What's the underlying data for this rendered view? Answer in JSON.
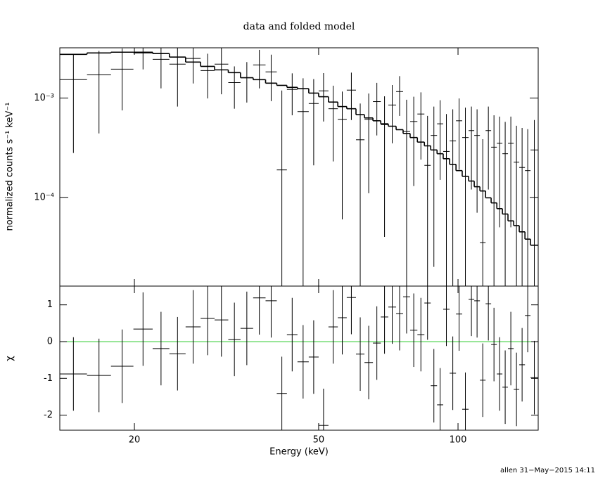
{
  "chart_data": [
    {
      "type": "spectrum",
      "title": "data and folded model",
      "ylabel": "normalized counts s⁻¹ keV⁻¹",
      "log_x": true,
      "log_y": true,
      "xlim": [
        13.8,
        149
      ],
      "ylim": [
        1.28e-05,
        0.0032
      ],
      "yticks": [
        {
          "value": 0.001,
          "label": "10⁻³"
        },
        {
          "value": 0.0001,
          "label": "10⁻⁴"
        }
      ],
      "bins": [
        13.8,
        15.8,
        17.8,
        19.9,
        21.9,
        23.8,
        25.8,
        27.8,
        29.8,
        31.9,
        33.9,
        36.1,
        38.4,
        40.6,
        42.7,
        45.0,
        47.6,
        50.0,
        52.5,
        55.0,
        57.5,
        60.2,
        62.8,
        65.5,
        68.1,
        70.7,
        73.5,
        76.1,
        78.8,
        81.7,
        84.6,
        87.3,
        90.1,
        92.9,
        95.9,
        99.0,
        102.1,
        105.4,
        108.4,
        111.5,
        114.7,
        117.9,
        121.3,
        124.7,
        128.2,
        131.9,
        135.6,
        139.5,
        143.4,
        149.0
      ],
      "data": {
        "color": "#000000",
        "values": [
          0.00153,
          0.00171,
          0.00195,
          0.00284,
          0.00245,
          0.00219,
          0.0025,
          0.00189,
          0.00219,
          0.00143,
          0.0016,
          0.00215,
          0.00183,
          0.000189,
          0.00122,
          0.00073,
          0.00088,
          0.00118,
          0.00078,
          0.00061,
          0.0012,
          0.00038,
          0.00061,
          0.00092,
          0.00054,
          0.00085,
          0.00116,
          0.00046,
          0.00058,
          0.00069,
          0.00021,
          0.00042,
          0.00055,
          0.00029,
          0.00037,
          0.00059,
          0.0004,
          0.00047,
          0.00042,
          3.5e-05,
          0.00047,
          0.00032,
          0.00035,
          0.000275,
          0.00035,
          0.000226,
          0.0002,
          0.000186,
          0.0003
        ],
        "errors": [
          0.00125,
          0.00127,
          0.0012,
          0.0009,
          0.0012,
          0.00137,
          0.0011,
          0.0009,
          0.0011,
          0.00065,
          0.0007,
          0.0009,
          0.0009,
          0.001,
          0.00055,
          0.00085,
          0.00067,
          0.0006,
          0.00055,
          0.00055,
          0.0006,
          0.0005,
          0.0005,
          0.0005,
          0.0005,
          0.0005,
          0.0005,
          0.0005,
          0.00045,
          0.00045,
          0.00045,
          0.0004,
          0.0004,
          0.0004,
          0.0004,
          0.0004,
          0.0004,
          0.00035,
          0.00035,
          0.00035,
          0.00035,
          0.00035,
          0.0003,
          0.0003,
          0.0003,
          0.0003,
          0.0003,
          0.0003,
          0.0003
        ]
      },
      "model": {
        "color": "#000000",
        "values": [
          0.00275,
          0.00284,
          0.00289,
          0.00289,
          0.0028,
          0.00258,
          0.0023,
          0.00208,
          0.00192,
          0.0018,
          0.0016,
          0.00153,
          0.00141,
          0.00134,
          0.00128,
          0.00124,
          0.00112,
          0.00103,
          0.00091,
          0.00082,
          0.00078,
          0.00068,
          0.00063,
          0.00059,
          0.00055,
          0.00052,
          0.00048,
          0.00044,
          0.0004,
          0.00036,
          0.00033,
          0.0003,
          0.000275,
          0.000245,
          0.000215,
          0.000186,
          0.000163,
          0.000146,
          0.000128,
          0.000116,
          9.9e-05,
          8.8e-05,
          7.7e-05,
          6.8e-05,
          5.8e-05,
          5.2e-05,
          4.5e-05,
          3.8e-05,
          3.3e-05
        ]
      }
    },
    {
      "type": "residual",
      "xlabel": "Energy (keV)",
      "ylabel": "χ",
      "ylim": [
        -2.41,
        1.51
      ],
      "xticks": [
        20,
        50,
        100
      ],
      "yticks": [
        1,
        0,
        -1,
        -2
      ],
      "zero_line": {
        "value": 0,
        "color": "#33cc33"
      },
      "color": "#000000",
      "values": [
        -0.88,
        -0.92,
        -0.67,
        0.34,
        -0.19,
        -0.33,
        0.4,
        0.63,
        0.59,
        0.06,
        0.36,
        1.19,
        1.11,
        -1.41,
        0.19,
        -0.55,
        -0.42,
        -2.28,
        0.4,
        0.65,
        1.2,
        -0.34,
        -0.57,
        -0.04,
        0.67,
        0.94,
        0.76,
        1.22,
        0.31,
        0.19,
        1.05,
        -1.2,
        -1.72,
        0.88,
        -0.86,
        0.75,
        -1.84,
        1.15,
        1.11,
        -1.05,
        1.03,
        -0.08,
        -0.88,
        -1.24,
        -0.19,
        -1.3,
        -0.63,
        0.71,
        -0.98
      ],
      "errors": [
        1,
        1,
        1,
        1,
        1,
        1,
        1,
        1,
        1,
        1,
        1,
        1,
        1,
        1,
        1,
        1,
        1,
        1,
        1,
        1,
        1,
        1,
        1,
        1,
        1,
        1,
        1,
        1,
        1,
        1,
        1,
        1,
        1,
        1,
        1,
        1,
        1,
        1,
        1,
        1,
        1,
        1,
        1,
        1,
        1,
        1,
        1,
        1,
        1
      ]
    }
  ],
  "footer": "allen 31−May−2015 14:11"
}
